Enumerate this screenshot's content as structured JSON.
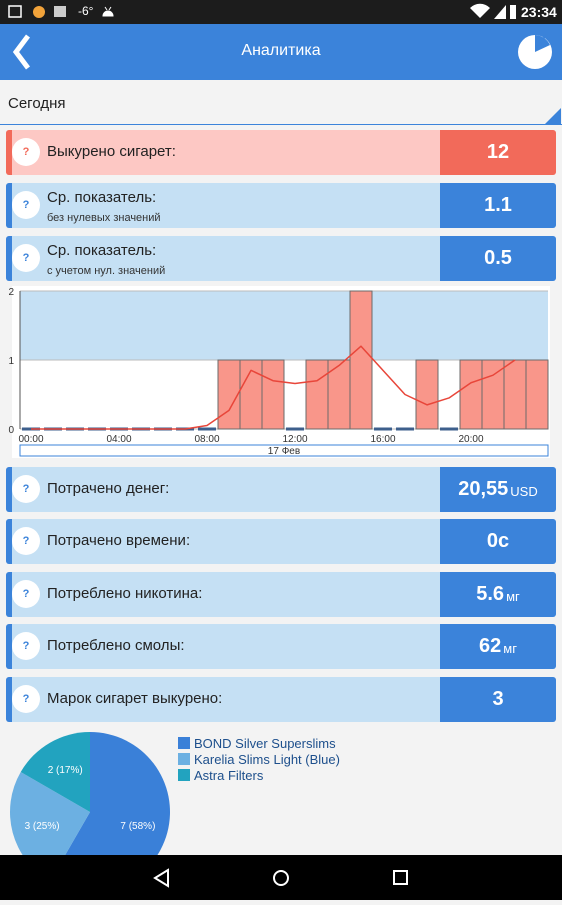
{
  "status_bar": {
    "temperature": "-6°",
    "time": "23:34"
  },
  "app_bar": {
    "title": "Аналитика"
  },
  "filter": {
    "period": "Сегодня"
  },
  "help_icon": "?",
  "stats": [
    {
      "label": "Выкурено сигарет:",
      "value": 12
    },
    {
      "label": "Ср. показатель:",
      "sublabel": "без нулевых значений",
      "value": 1.1
    },
    {
      "label": "Ср. показатель:",
      "sublabel": "с учетом нул. значений",
      "value": 0.5
    },
    {
      "label": "Потрачено денег:",
      "value": "20,55",
      "unit": "USD"
    },
    {
      "label": "Потрачено времени:",
      "value": "0с"
    },
    {
      "label": "Потреблено никотина:",
      "value": 5.6,
      "unit": "мг"
    },
    {
      "label": "Потреблено смолы:",
      "value": 62,
      "unit": "мг"
    },
    {
      "label": "Марок сигарет выкурено:",
      "value": 3
    }
  ],
  "chart_data": [
    {
      "type": "bar",
      "categories": [
        "00:00",
        null,
        null,
        null,
        "04:00",
        null,
        null,
        null,
        "08:00",
        null,
        null,
        null,
        "12:00",
        null,
        null,
        null,
        "16:00",
        null,
        null,
        null,
        "20:00",
        null,
        null,
        null
      ],
      "series": [
        {
          "type": "bar",
          "color": "#f9968a",
          "values": [
            0,
            0,
            0,
            0,
            0,
            0,
            0,
            0,
            0,
            1,
            1,
            1,
            0,
            1,
            1,
            2,
            0,
            0,
            1,
            0,
            1,
            1,
            1,
            1
          ]
        },
        {
          "type": "line",
          "color": "#e8463a",
          "values": [
            0,
            0,
            0,
            0,
            0,
            0,
            0,
            0,
            0.05,
            0.27,
            0.85,
            0.7,
            0.66,
            0.7,
            0.92,
            1.2,
            0.85,
            0.5,
            0.35,
            0.45,
            0.67,
            0.78,
            1.0,
            null
          ]
        }
      ],
      "xlabel": "17 Фев",
      "ylim": [
        0,
        2
      ],
      "yticks": [
        0,
        1,
        2
      ],
      "grid": true
    },
    {
      "type": "pie",
      "categories": [
        "BOND Silver Superslims",
        "Karelia Slims Light (Blue)",
        "Astra Filters"
      ],
      "values": [
        7,
        3,
        2
      ],
      "value_labels": [
        "7 (58%)",
        "3 (25%)",
        "2 (17%)"
      ],
      "colors": [
        "#3a80d8",
        "#6cb0e2",
        "#22a3bf"
      ]
    }
  ]
}
